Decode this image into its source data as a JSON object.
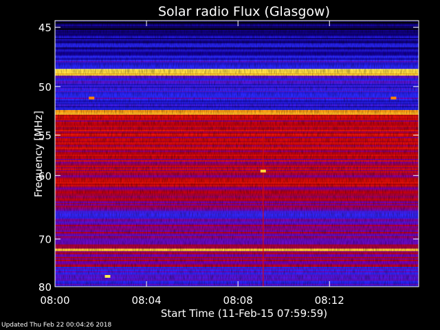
{
  "chart_data": {
    "type": "heatmap",
    "title": "Solar radio Flux (Glasgow)",
    "xlabel": "Start Time (11-Feb-15 07:59:59)",
    "ylabel": "Frequency [MHz]",
    "x_ticks": [
      "08:00",
      "08:04",
      "08:08",
      "08:12"
    ],
    "x_tick_minutes": [
      0,
      4,
      8,
      12
    ],
    "x_range_minutes": [
      0,
      15.9
    ],
    "y_ticks": [
      45,
      50,
      55,
      60,
      70,
      80
    ],
    "y_range_mhz": [
      44.5,
      80
    ],
    "y_scale": "reciprocal",
    "colormap": [
      "#000000",
      "#1400a0",
      "#2a2aff",
      "#7a00b0",
      "#c00010",
      "#ff2000",
      "#ff8800",
      "#ffff60"
    ],
    "bands": [
      {
        "from_mhz": 44.5,
        "to_mhz": 45.6,
        "level": 0.05
      },
      {
        "from_mhz": 45.6,
        "to_mhz": 47.6,
        "level": 0.18
      },
      {
        "from_mhz": 47.6,
        "to_mhz": 48.4,
        "level": 0.3
      },
      {
        "from_mhz": 48.4,
        "to_mhz": 49.0,
        "level": 0.95
      },
      {
        "from_mhz": 49.0,
        "to_mhz": 52.3,
        "level": 0.3
      },
      {
        "from_mhz": 52.3,
        "to_mhz": 52.8,
        "level": 0.9
      },
      {
        "from_mhz": 52.8,
        "to_mhz": 56.0,
        "level": 0.58
      },
      {
        "from_mhz": 56.0,
        "to_mhz": 62.5,
        "level": 0.55
      },
      {
        "from_mhz": 62.5,
        "to_mhz": 65.0,
        "level": 0.5
      },
      {
        "from_mhz": 65.0,
        "to_mhz": 67.5,
        "level": 0.35
      },
      {
        "from_mhz": 67.5,
        "to_mhz": 71.8,
        "level": 0.48
      },
      {
        "from_mhz": 71.8,
        "to_mhz": 72.3,
        "level": 0.95
      },
      {
        "from_mhz": 72.3,
        "to_mhz": 75.5,
        "level": 0.48
      },
      {
        "from_mhz": 75.5,
        "to_mhz": 80.0,
        "level": 0.33
      }
    ],
    "bursts": [
      {
        "minute": 9.1,
        "mhz": 59.4,
        "level": 0.95
      },
      {
        "minute": 2.3,
        "mhz": 77.6,
        "level": 0.98
      },
      {
        "minute": 1.6,
        "mhz": 51.1,
        "level": 0.85
      },
      {
        "minute": 14.8,
        "mhz": 51.1,
        "level": 0.85
      }
    ],
    "vertical_feature_minute": 9.1
  },
  "footer_text": "Updated Thu Feb 22 00:04:26 2018"
}
